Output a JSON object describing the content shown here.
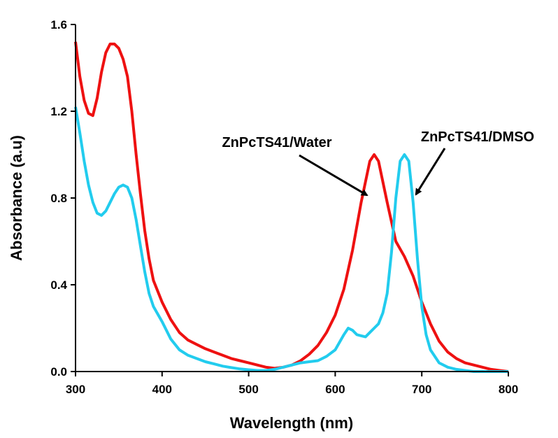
{
  "chart_data": {
    "type": "line",
    "title": "",
    "xlabel": "Wavelength (nm)",
    "ylabel": "Absorbance (a.u)",
    "xlim": [
      300,
      800
    ],
    "ylim": [
      0.0,
      1.6
    ],
    "xticks": [
      "300",
      "400",
      "500",
      "600",
      "700",
      "800"
    ],
    "yticks": [
      "0.0",
      "0.4",
      "0.8",
      "1.2",
      "1.6"
    ],
    "grid": false,
    "legend": "none",
    "series": [
      {
        "color": "#ee1111",
        "x": [
          300,
          305,
          310,
          315,
          320,
          325,
          330,
          335,
          340,
          345,
          350,
          355,
          360,
          365,
          370,
          375,
          380,
          385,
          390,
          395,
          400,
          410,
          420,
          430,
          440,
          450,
          460,
          470,
          480,
          490,
          500,
          510,
          520,
          530,
          540,
          550,
          560,
          570,
          580,
          590,
          600,
          610,
          620,
          630,
          640,
          645,
          650,
          660,
          670,
          680,
          690,
          700,
          710,
          720,
          730,
          740,
          750,
          760,
          770,
          780,
          790,
          800
        ],
        "y": [
          1.52,
          1.36,
          1.25,
          1.19,
          1.18,
          1.26,
          1.38,
          1.47,
          1.51,
          1.51,
          1.49,
          1.44,
          1.36,
          1.2,
          1.0,
          0.82,
          0.65,
          0.52,
          0.42,
          0.37,
          0.32,
          0.24,
          0.18,
          0.145,
          0.125,
          0.105,
          0.09,
          0.075,
          0.06,
          0.05,
          0.04,
          0.03,
          0.02,
          0.015,
          0.02,
          0.03,
          0.05,
          0.08,
          0.12,
          0.18,
          0.26,
          0.38,
          0.56,
          0.78,
          0.97,
          1.0,
          0.97,
          0.78,
          0.6,
          0.53,
          0.44,
          0.32,
          0.22,
          0.14,
          0.09,
          0.06,
          0.04,
          0.03,
          0.02,
          0.01,
          0.005,
          0.0
        ]
      },
      {
        "color": "#22ccee",
        "x": [
          300,
          305,
          310,
          315,
          320,
          325,
          330,
          335,
          340,
          345,
          350,
          355,
          360,
          365,
          370,
          375,
          380,
          385,
          390,
          400,
          410,
          420,
          430,
          440,
          450,
          460,
          470,
          480,
          490,
          500,
          510,
          520,
          530,
          540,
          550,
          560,
          570,
          580,
          590,
          600,
          610,
          615,
          620,
          625,
          630,
          635,
          640,
          645,
          650,
          655,
          660,
          665,
          670,
          675,
          680,
          685,
          690,
          695,
          700,
          705,
          710,
          720,
          730,
          740,
          750,
          760,
          770,
          780,
          790,
          800
        ],
        "y": [
          1.22,
          1.1,
          0.97,
          0.86,
          0.78,
          0.73,
          0.72,
          0.74,
          0.78,
          0.82,
          0.85,
          0.86,
          0.85,
          0.8,
          0.7,
          0.58,
          0.46,
          0.36,
          0.3,
          0.23,
          0.15,
          0.1,
          0.075,
          0.06,
          0.045,
          0.035,
          0.025,
          0.018,
          0.012,
          0.008,
          0.005,
          0.005,
          0.01,
          0.02,
          0.03,
          0.04,
          0.045,
          0.05,
          0.07,
          0.1,
          0.17,
          0.2,
          0.19,
          0.17,
          0.165,
          0.16,
          0.18,
          0.2,
          0.22,
          0.27,
          0.36,
          0.55,
          0.8,
          0.97,
          1.0,
          0.97,
          0.78,
          0.52,
          0.3,
          0.17,
          0.1,
          0.04,
          0.02,
          0.01,
          0.005,
          0.0,
          0.0,
          0.0,
          0.0,
          0.0
        ]
      }
    ],
    "annotations": [
      {
        "text": "ZnPcTS41/Water",
        "series": 0,
        "x": 640,
        "y": 0.8
      },
      {
        "text": "ZnPcTS41/DMSO",
        "series": 1,
        "x": 690,
        "y": 0.81
      }
    ]
  }
}
